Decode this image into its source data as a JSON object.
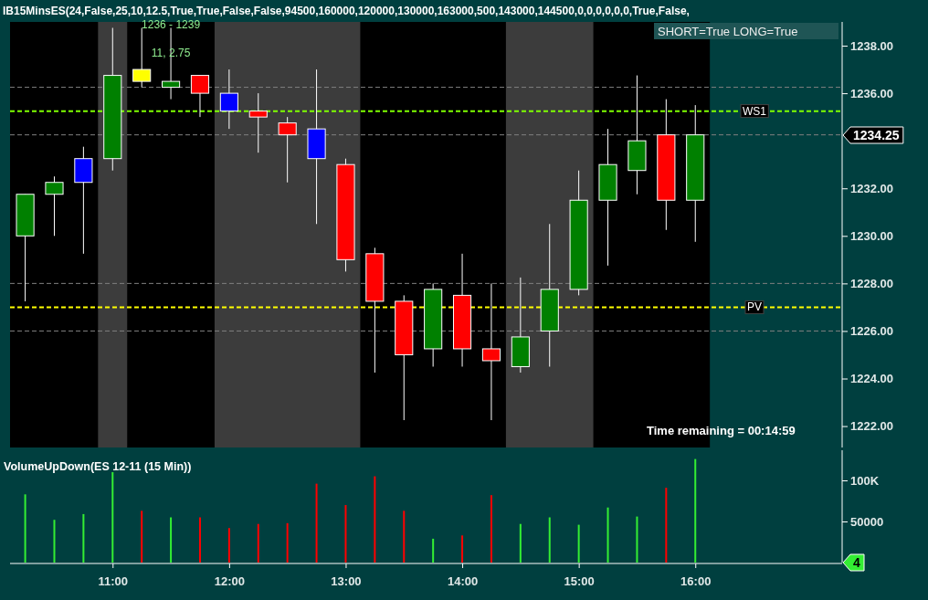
{
  "chart_data": [
    {
      "type": "candlestick",
      "title": "IB15MinsES(24,False,25,10,12.5,True,True,False,False,94500,160000,120000,130000,163000,500,143000,144500,0,0,0,0,0,0,True,False,",
      "x": [
        10.25,
        10.5,
        10.75,
        11,
        11.25,
        11.5,
        11.75,
        12,
        12.25,
        12.5,
        12.75,
        13,
        13.25,
        13.5,
        13.75,
        14,
        14.25,
        14.5,
        14.75,
        15,
        15.25,
        15.5,
        15.75,
        16
      ],
      "ohlc": [
        [
          1230.0,
          1231.75,
          1227.25,
          1231.75
        ],
        [
          1231.75,
          1232.5,
          1230.0,
          1232.25
        ],
        [
          1232.25,
          1233.75,
          1229.25,
          1233.25
        ],
        [
          1233.25,
          1238.75,
          1232.75,
          1236.75
        ],
        [
          1236.5,
          1238.75,
          1236.25,
          1237.0
        ],
        [
          1236.25,
          1238.75,
          1235.75,
          1236.5
        ],
        [
          1236.75,
          1236.75,
          1235.0,
          1236.0
        ],
        [
          1236.0,
          1237.0,
          1234.5,
          1235.25
        ],
        [
          1235.25,
          1236.0,
          1233.5,
          1235.0
        ],
        [
          1234.75,
          1235.0,
          1232.25,
          1234.25
        ],
        [
          1234.5,
          1237.0,
          1230.5,
          1233.25
        ],
        [
          1233.0,
          1233.25,
          1228.5,
          1229.0
        ],
        [
          1229.25,
          1229.5,
          1224.25,
          1227.25
        ],
        [
          1227.25,
          1227.5,
          1222.25,
          1225.0
        ],
        [
          1225.25,
          1228.0,
          1224.5,
          1227.75
        ],
        [
          1227.5,
          1229.25,
          1224.5,
          1225.25
        ],
        [
          1225.25,
          1228.0,
          1222.25,
          1224.75
        ],
        [
          1224.5,
          1228.25,
          1224.25,
          1225.75
        ],
        [
          1226.0,
          1230.5,
          1224.5,
          1227.75
        ],
        [
          1227.75,
          1232.75,
          1227.5,
          1231.5
        ],
        [
          1231.5,
          1234.5,
          1228.75,
          1233.0
        ],
        [
          1232.75,
          1236.75,
          1231.75,
          1234.0
        ],
        [
          1234.25,
          1235.75,
          1230.25,
          1231.5
        ],
        [
          1231.5,
          1235.5,
          1229.75,
          1234.25
        ]
      ],
      "colors": [
        "#008000",
        "#008000",
        "#0000ff",
        "#008000",
        "#ffff00",
        "#008000",
        "#ff0000",
        "#0000ff",
        "#ff0000",
        "#ff0000",
        "#0000ff",
        "#ff0000",
        "#ff0000",
        "#ff0000",
        "#008000",
        "#ff0000",
        "#ff0000",
        "#008000",
        "#008000",
        "#008000",
        "#008000",
        "#008000",
        "#ff0000",
        "#008000"
      ],
      "xlim": [
        10.12,
        17.26
      ],
      "ylim": [
        1221.1,
        1239
      ],
      "yticks": [
        {
          "value": 1222,
          "label": "1222.00"
        },
        {
          "value": 1224,
          "label": "1224.00"
        },
        {
          "value": 1226,
          "label": "1226.00"
        },
        {
          "value": 1228,
          "label": "1228.00"
        },
        {
          "value": 1230,
          "label": "1230.00"
        },
        {
          "value": 1232,
          "label": "1232.00"
        },
        {
          "value": 1236,
          "label": "1236.00"
        },
        {
          "value": 1238,
          "label": "1238.00"
        }
      ],
      "tick_labels": "y",
      "ref_lines": [
        {
          "axis": "y",
          "value": 1236.25,
          "color": "#808080",
          "line_style": "dashed"
        },
        {
          "axis": "y",
          "value": 1234.25,
          "color": "#808080",
          "line_style": "dashed"
        },
        {
          "axis": "y",
          "value": 1228,
          "color": "#808080",
          "line_style": "dashed"
        },
        {
          "axis": "y",
          "value": 1226,
          "color": "#808080",
          "line_style": "dashed"
        },
        {
          "axis": "y",
          "value": 1235.25,
          "label": "WS1",
          "color": "#7fff00",
          "line_style": "dashed"
        },
        {
          "axis": "y",
          "value": 1227,
          "label": "PV",
          "color": "#ffff00",
          "line_style": "dashed"
        }
      ],
      "bands": [
        {
          "axis": "x",
          "from": 10.12,
          "to": 16.125,
          "color": "#000000"
        },
        {
          "axis": "x",
          "from": 10.875,
          "to": 11.125,
          "color": "#3c3c3c"
        },
        {
          "axis": "x",
          "from": 11.875,
          "to": 13.125,
          "color": "#3c3c3c"
        },
        {
          "axis": "x",
          "from": 14.375,
          "to": 15.125,
          "color": "#3c3c3c"
        }
      ],
      "annotations": [
        {
          "text": "1236 - 1239",
          "x": 11.5,
          "y": 1238.9
        },
        {
          "text": "11, 2.75",
          "x": 11.5,
          "y": 1237.7
        },
        "1234.25",
        "SHORT=True LONG=True",
        "Time remaining = 00:14:59"
      ]
    },
    {
      "type": "bar",
      "title": "VolumeUpDown(ES 12-11 (15 Min))",
      "x": [
        10.25,
        10.5,
        10.75,
        11,
        11.25,
        11.5,
        11.75,
        12,
        12.25,
        12.5,
        12.75,
        13,
        13.25,
        13.5,
        13.75,
        14,
        14.25,
        14.5,
        14.75,
        15,
        15.25,
        15.5,
        15.75,
        16
      ],
      "values": [
        83000,
        52000,
        59000,
        110000,
        63000,
        55000,
        55000,
        42000,
        47000,
        48000,
        96000,
        70000,
        105000,
        63000,
        29000,
        33000,
        82000,
        47000,
        55000,
        46000,
        67000,
        56000,
        91000,
        126000
      ],
      "colors": [
        "#33ee33",
        "#33ee33",
        "#33ee33",
        "#33ee33",
        "#ff0000",
        "#33ee33",
        "#ff0000",
        "#ff0000",
        "#ff0000",
        "#ff0000",
        "#ff0000",
        "#ff0000",
        "#ff0000",
        "#ff0000",
        "#33ee33",
        "#ff0000",
        "#ff0000",
        "#33ee33",
        "#33ee33",
        "#33ee33",
        "#33ee33",
        "#33ee33",
        "#ff0000",
        "#33ee33"
      ],
      "xlim": [
        10.12,
        17.26
      ],
      "xticks": [
        {
          "value": 11,
          "label": "11:00"
        },
        {
          "value": 12,
          "label": "12:00"
        },
        {
          "value": 13,
          "label": "13:00"
        },
        {
          "value": 14,
          "label": "14:00"
        },
        {
          "value": 15,
          "label": "15:00"
        },
        {
          "value": 16,
          "label": "16:00"
        }
      ],
      "ylim": [
        0,
        136700
      ],
      "yticks": [
        {
          "value": 50000,
          "label": "50000"
        },
        {
          "value": 100000,
          "label": "100K"
        }
      ],
      "annotations": [
        "4"
      ]
    }
  ]
}
